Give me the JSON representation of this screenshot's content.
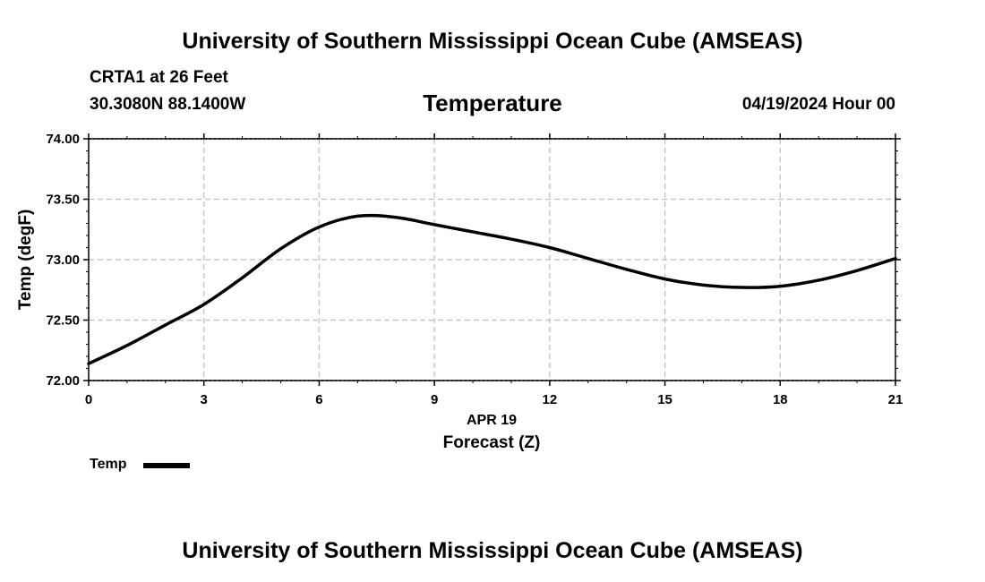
{
  "page": {
    "title_top": "University of Southern Mississippi Ocean Cube (AMSEAS)",
    "title_bottom": "University of Southern Mississippi Ocean Cube (AMSEAS)",
    "station": "CRTA1 at 26 Feet",
    "coords": "30.3080N  88.1400W",
    "parameter": "Temperature",
    "datetime": "04/19/2024 Hour 00"
  },
  "legend": {
    "label": "Temp",
    "color": "#000000"
  },
  "chart_data": {
    "type": "line",
    "title": "Temperature",
    "xlabel": "Forecast (Z)",
    "xsublabel": "APR 19",
    "ylabel": "Temp (degF)",
    "xlim": [
      0,
      21
    ],
    "ylim": [
      72.0,
      74.0
    ],
    "xticks": [
      0,
      3,
      6,
      9,
      12,
      15,
      18,
      21
    ],
    "xtick_labels": [
      "0",
      "3",
      "6",
      "9",
      "12",
      "15",
      "18",
      "21"
    ],
    "yticks": [
      72.0,
      72.5,
      73.0,
      73.5,
      74.0
    ],
    "ytick_labels": [
      "72.00",
      "72.50",
      "73.00",
      "73.50",
      "74.00"
    ],
    "grid": true,
    "series": [
      {
        "name": "Temp",
        "color": "#000000",
        "x": [
          0,
          1,
          2,
          3,
          4,
          5,
          6,
          7,
          8,
          9,
          10,
          11,
          12,
          13,
          14,
          15,
          16,
          17,
          18,
          19,
          20,
          21
        ],
        "values": [
          72.14,
          72.29,
          72.46,
          72.63,
          72.85,
          73.09,
          73.27,
          73.36,
          73.35,
          73.29,
          73.23,
          73.17,
          73.1,
          73.01,
          72.92,
          72.84,
          72.79,
          72.77,
          72.78,
          72.83,
          72.91,
          73.01
        ]
      }
    ]
  }
}
